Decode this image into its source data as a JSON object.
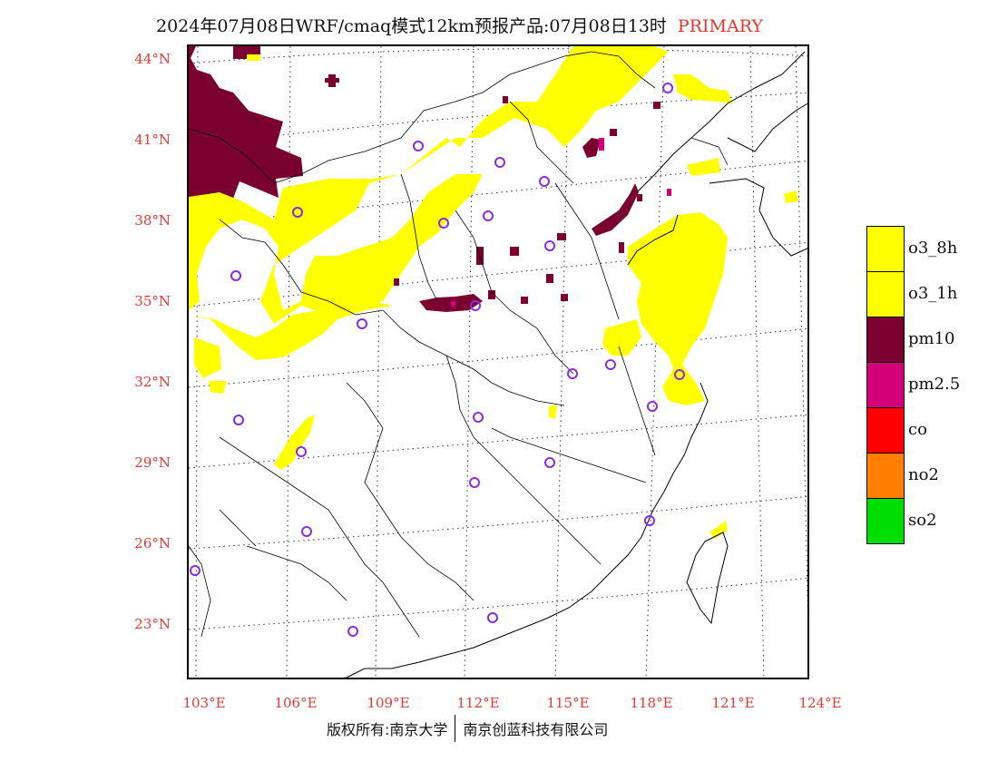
{
  "title": {
    "main": "2024年07月08日WRF/cmaq模式12km预报产品:07月08日13时",
    "tag": "PRIMARY"
  },
  "axes": {
    "lat_labels": [
      "44°N",
      "41°N",
      "38°N",
      "35°N",
      "32°N",
      "29°N",
      "26°N",
      "23°N"
    ],
    "lon_labels": [
      "103°E",
      "106°E",
      "109°E",
      "112°E",
      "115°E",
      "118°E",
      "121°E",
      "124°E"
    ]
  },
  "legend": {
    "items": [
      {
        "label": "o3_8h",
        "color": "#ffff00"
      },
      {
        "label": "o3_1h",
        "color": "#ffff00"
      },
      {
        "label": "pm10",
        "color": "#7a0030"
      },
      {
        "label": "pm2.5",
        "color": "#d4007a"
      },
      {
        "label": "co",
        "color": "#ff0000"
      },
      {
        "label": "no2",
        "color": "#ff8000"
      },
      {
        "label": "so2",
        "color": "#00dd00"
      }
    ]
  },
  "footer": {
    "copyright": "版权所有:南京大学",
    "company": "南京创蓝科技有限公司"
  },
  "colors": {
    "accent": "#e53935",
    "o3": "#ffff00",
    "pm10": "#7a0030",
    "pm25": "#d4007a",
    "station": "#8a2be2"
  }
}
